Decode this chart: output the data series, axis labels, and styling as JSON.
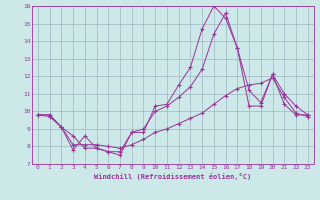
{
  "xlabel": "Windchill (Refroidissement éolien,°C)",
  "xlim": [
    -0.5,
    23.5
  ],
  "ylim": [
    7,
    16
  ],
  "xticks": [
    0,
    1,
    2,
    3,
    4,
    5,
    6,
    7,
    8,
    9,
    10,
    11,
    12,
    13,
    14,
    15,
    16,
    17,
    18,
    19,
    20,
    21,
    22,
    23
  ],
  "yticks": [
    7,
    8,
    9,
    10,
    11,
    12,
    13,
    14,
    15,
    16
  ],
  "background_color": "#cce8e8",
  "line_color": "#993399",
  "grid_color": "#99aabb",
  "line1_x": [
    0,
    1,
    2,
    3,
    4,
    5,
    6,
    7,
    8,
    9,
    10,
    11,
    12,
    13,
    14,
    15,
    16,
    17,
    18,
    19,
    20,
    21,
    22,
    23
  ],
  "line1_y": [
    9.8,
    9.8,
    9.1,
    7.8,
    8.6,
    7.9,
    7.7,
    7.5,
    8.8,
    8.8,
    10.3,
    10.4,
    11.5,
    12.5,
    14.7,
    16.0,
    15.3,
    13.6,
    10.3,
    10.3,
    12.1,
    10.4,
    9.8,
    9.8
  ],
  "line2_x": [
    0,
    1,
    2,
    3,
    4,
    5,
    6,
    7,
    8,
    9,
    10,
    11,
    12,
    13,
    14,
    15,
    16,
    17,
    18,
    19,
    20,
    21,
    22,
    23
  ],
  "line2_y": [
    9.8,
    9.8,
    9.1,
    8.6,
    7.9,
    7.9,
    7.7,
    7.7,
    8.8,
    9.0,
    10.0,
    10.3,
    10.8,
    11.4,
    12.4,
    14.4,
    15.6,
    13.6,
    11.2,
    10.5,
    12.1,
    11.0,
    10.3,
    9.8
  ],
  "line3_x": [
    0,
    1,
    2,
    3,
    4,
    5,
    6,
    7,
    8,
    9,
    10,
    11,
    12,
    13,
    14,
    15,
    16,
    17,
    18,
    19,
    20,
    21,
    22,
    23
  ],
  "line3_y": [
    9.8,
    9.7,
    9.1,
    8.1,
    8.1,
    8.1,
    8.0,
    7.9,
    8.1,
    8.4,
    8.8,
    9.0,
    9.3,
    9.6,
    9.9,
    10.4,
    10.9,
    11.3,
    11.5,
    11.6,
    11.9,
    10.8,
    9.9,
    9.7
  ]
}
